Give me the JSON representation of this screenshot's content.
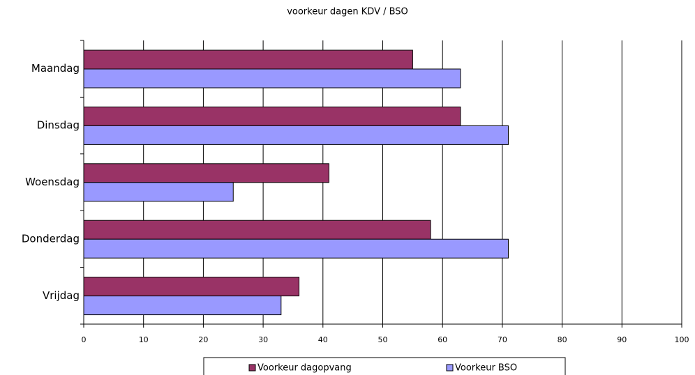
{
  "chart_data": {
    "type": "bar",
    "orientation": "horizontal",
    "title": "voorkeur dagen KDV / BSO",
    "categories": [
      "Maandag",
      "Dinsdag",
      "Woensdag",
      "Donderdag",
      "Vrijdag"
    ],
    "series": [
      {
        "name": "Voorkeur dagopvang",
        "color": "#993366",
        "values": [
          55,
          63,
          41,
          58,
          36
        ]
      },
      {
        "name": "Voorkeur BSO",
        "color": "#9999ff",
        "values": [
          63,
          71,
          25,
          71,
          33
        ]
      }
    ],
    "xlim": [
      0,
      100
    ],
    "xticks": [
      0,
      10,
      20,
      30,
      40,
      50,
      60,
      70,
      80,
      90,
      100
    ],
    "grid": true,
    "legend": "bottom"
  }
}
